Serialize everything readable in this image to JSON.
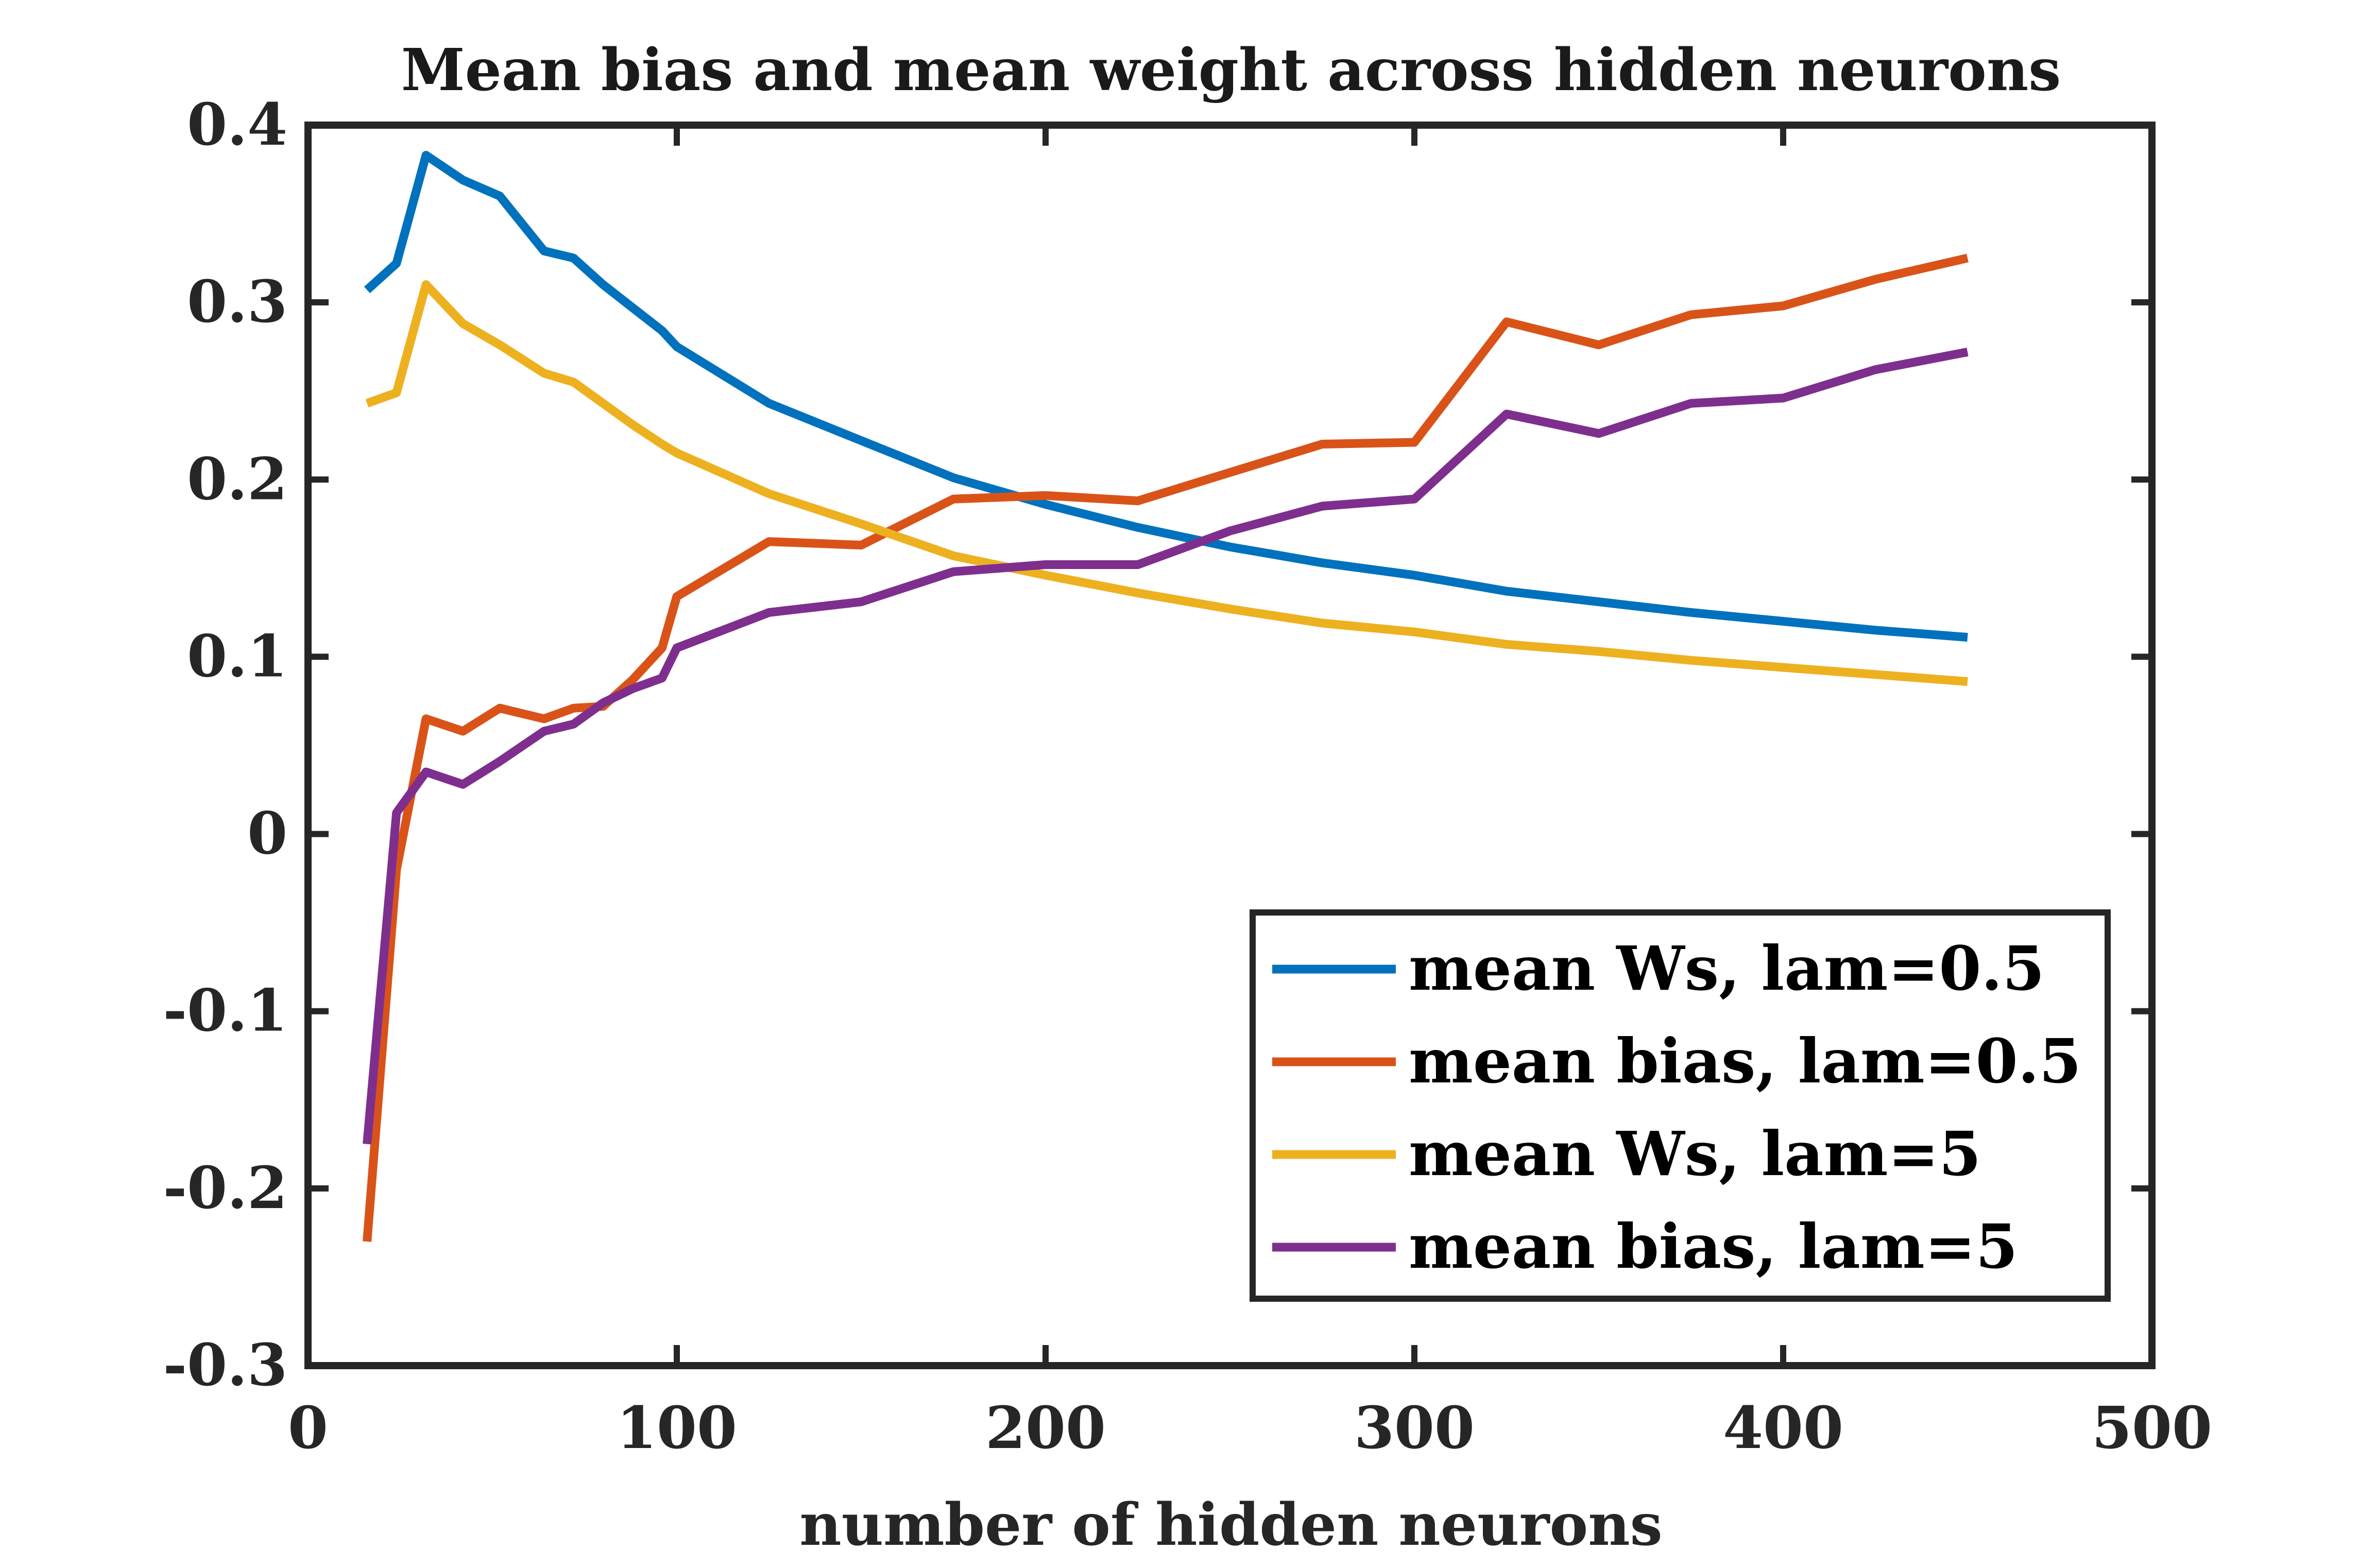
{
  "chart_data": {
    "type": "line",
    "title": "Mean bias and mean weight across hidden neurons",
    "xlabel": "number of hidden neurons",
    "ylabel": "",
    "xlim": [
      0,
      500
    ],
    "ylim": [
      -0.3,
      0.4
    ],
    "xticks": [
      0,
      100,
      200,
      300,
      400,
      500
    ],
    "yticks": [
      -0.3,
      -0.2,
      -0.1,
      0,
      0.1,
      0.2,
      0.3,
      0.4
    ],
    "xtick_labels": [
      "0",
      "100",
      "200",
      "300",
      "400",
      "500"
    ],
    "ytick_labels": [
      "-0.3",
      "-0.2",
      "-0.1",
      "0",
      "0.1",
      "0.2",
      "0.3",
      "0.4"
    ],
    "grid": false,
    "legend_position": "bottom-right",
    "x": [
      16,
      24,
      32,
      42,
      52,
      64,
      72,
      80,
      88,
      96,
      100,
      125,
      150,
      175,
      200,
      225,
      250,
      275,
      300,
      325,
      350,
      375,
      400,
      425,
      450
    ],
    "series": [
      {
        "name": "mean Ws, lam=0.5",
        "color": "#0072BD",
        "values": [
          0.307,
          0.322,
          0.383,
          0.369,
          0.36,
          0.329,
          0.325,
          0.31,
          0.297,
          0.284,
          0.275,
          0.243,
          0.222,
          0.201,
          0.186,
          0.173,
          0.162,
          0.153,
          0.146,
          0.137,
          0.131,
          0.125,
          0.12,
          0.115,
          0.111
        ]
      },
      {
        "name": "mean bias, lam=0.5",
        "color": "#D95319",
        "values": [
          -0.23,
          -0.02,
          0.065,
          0.058,
          0.071,
          0.065,
          0.071,
          0.072,
          0.087,
          0.105,
          0.134,
          0.165,
          0.163,
          0.189,
          0.191,
          0.188,
          0.204,
          0.22,
          0.221,
          0.289,
          0.276,
          0.293,
          0.298,
          0.313,
          0.325
        ]
      },
      {
        "name": "mean Ws, lam=5",
        "color": "#EDB120",
        "values": [
          0.243,
          0.249,
          0.31,
          0.288,
          0.276,
          0.26,
          0.255,
          0.243,
          0.231,
          0.22,
          0.215,
          0.192,
          0.175,
          0.157,
          0.146,
          0.136,
          0.127,
          0.119,
          0.114,
          0.107,
          0.103,
          0.098,
          0.094,
          0.09,
          0.086
        ]
      },
      {
        "name": "mean bias, lam=5",
        "color": "#7E2F8E",
        "values": [
          -0.175,
          0.012,
          0.035,
          0.028,
          0.041,
          0.058,
          0.062,
          0.074,
          0.082,
          0.088,
          0.105,
          0.125,
          0.131,
          0.148,
          0.152,
          0.152,
          0.171,
          0.185,
          0.189,
          0.237,
          0.226,
          0.243,
          0.246,
          0.262,
          0.272
        ]
      }
    ]
  }
}
